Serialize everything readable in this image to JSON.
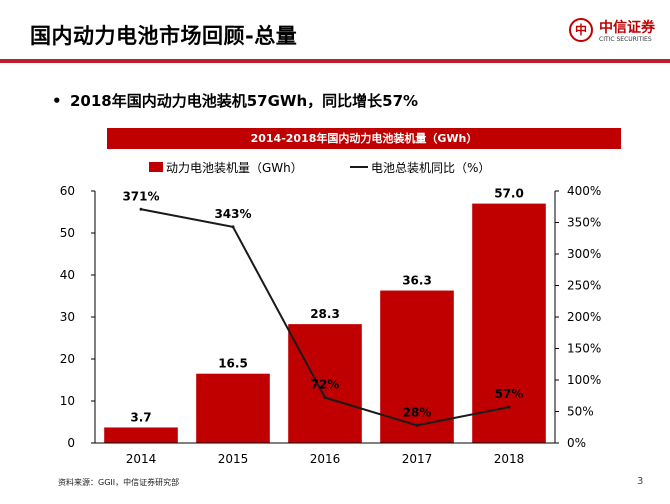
{
  "header": {
    "title": "国内动力电池市场回顾-总量"
  },
  "logo": {
    "mark": "中",
    "name_cn": "中信证券",
    "name_en": "CITIC SECURITIES"
  },
  "bullet": {
    "symbol": "•",
    "text": "2018年国内动力电池装机57GWh，同比增长57%"
  },
  "chart_data": {
    "type": "bar",
    "title": "2014-2018年国内动力电池装机量（GWh）",
    "categories": [
      "2014",
      "2015",
      "2016",
      "2017",
      "2018"
    ],
    "series": [
      {
        "name": "动力电池装机量（GWh）",
        "type": "bar",
        "axis": "left",
        "values": [
          3.7,
          16.5,
          28.3,
          36.3,
          57.0
        ],
        "labels": [
          "3.7",
          "16.5",
          "28.3",
          "36.3",
          "57.0"
        ]
      },
      {
        "name": "电池总装机同比（%）",
        "type": "line",
        "axis": "right",
        "values": [
          371,
          343,
          72,
          28,
          57
        ],
        "labels": [
          "371%",
          "343%",
          "72%",
          "28%",
          "57%"
        ]
      }
    ],
    "y_left": {
      "min": 0,
      "max": 60,
      "ticks": [
        "0",
        "10",
        "20",
        "30",
        "40",
        "50",
        "60"
      ]
    },
    "y_right": {
      "min": 0,
      "max": 400,
      "ticks": [
        "0%",
        "50%",
        "100%",
        "150%",
        "200%",
        "250%",
        "300%",
        "350%",
        "400%"
      ]
    },
    "legend_position": "top",
    "grid": false,
    "bar_color": "#c00000",
    "line_color": "#1a1a1a"
  },
  "footer": {
    "source": "资料来源：GGII，中信证券研究部",
    "page": "3"
  }
}
